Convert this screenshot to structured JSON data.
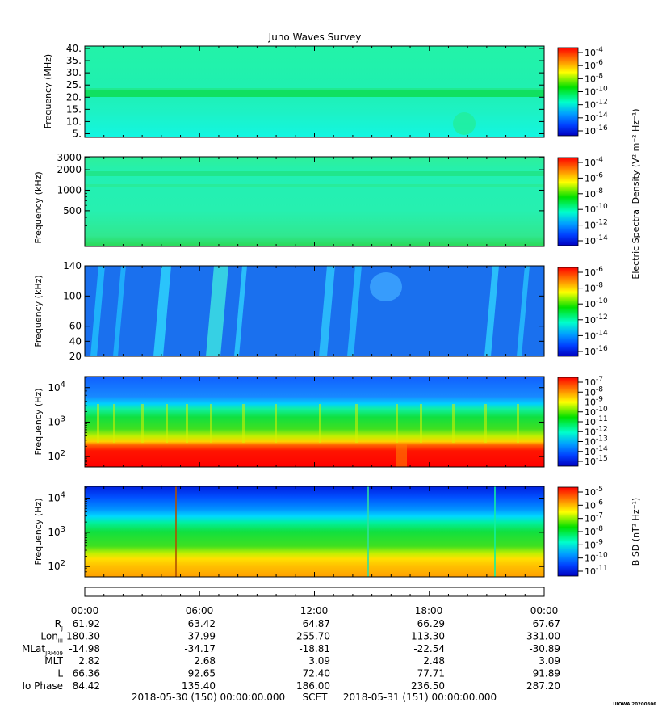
{
  "title": "Juno Waves Survey",
  "footer": {
    "start": "2018-05-30 (150) 00:00:00.000",
    "mid": "SCET",
    "end": "2018-05-31 (151) 00:00:00.000",
    "stamp": "UIOWA 20200306"
  },
  "cb_labels": {
    "electric": "Electric Spectral Density (V² m⁻² Hz⁻¹)",
    "magnetic": "B SD (nT² Hz⁻¹)"
  },
  "chart_data": [
    {
      "type": "heatmap",
      "ylabel": "Frequency (MHz)",
      "yscale": "linear",
      "ylim": [
        3.5,
        41
      ],
      "yticks": [
        {
          "v": 5,
          "label": "5."
        },
        {
          "v": 10,
          "label": "10."
        },
        {
          "v": 15,
          "label": "15."
        },
        {
          "v": 20,
          "label": "20."
        },
        {
          "v": 25,
          "label": "25."
        },
        {
          "v": 30,
          "label": "30."
        },
        {
          "v": 35,
          "label": "35."
        },
        {
          "v": 40,
          "label": "40."
        }
      ],
      "colorbar": {
        "ticks": [
          {
            "base": "10",
            "exp": "-4"
          },
          {
            "base": "10",
            "exp": "-6"
          },
          {
            "base": "10",
            "exp": "-8"
          },
          {
            "base": "10",
            "exp": "-10"
          },
          {
            "base": "10",
            "exp": "-12"
          },
          {
            "base": "10",
            "exp": "-14"
          },
          {
            "base": "10",
            "exp": "-16"
          }
        ]
      }
    },
    {
      "type": "heatmap",
      "ylabel": "Frequency (kHz)",
      "yscale": "log",
      "ylim": [
        150,
        3100
      ],
      "yticks": [
        {
          "v": 500,
          "label": "500"
        },
        {
          "v": 1000,
          "label": "1000"
        },
        {
          "v": 2000,
          "label": "2000"
        },
        {
          "v": 3000,
          "label": "3000"
        }
      ],
      "colorbar": {
        "ticks": [
          {
            "base": "10",
            "exp": "-4"
          },
          {
            "base": "10",
            "exp": "-6"
          },
          {
            "base": "10",
            "exp": "-8"
          },
          {
            "base": "10",
            "exp": "-10"
          },
          {
            "base": "10",
            "exp": "-12"
          },
          {
            "base": "10",
            "exp": "-14"
          }
        ]
      }
    },
    {
      "type": "heatmap",
      "ylabel": "Frequency (kHz)",
      "yscale": "linear",
      "ylim": [
        20,
        140
      ],
      "yticks": [
        {
          "v": 20,
          "label": "20"
        },
        {
          "v": 40,
          "label": "40"
        },
        {
          "v": 60,
          "label": "60"
        },
        {
          "v": 100,
          "label": "100"
        },
        {
          "v": 140,
          "label": "140"
        }
      ],
      "colorbar": {
        "ticks": [
          {
            "base": "10",
            "exp": "-6"
          },
          {
            "base": "10",
            "exp": "-8"
          },
          {
            "base": "10",
            "exp": "-10"
          },
          {
            "base": "10",
            "exp": "-12"
          },
          {
            "base": "10",
            "exp": "-14"
          },
          {
            "base": "10",
            "exp": "-16"
          }
        ]
      }
    },
    {
      "type": "heatmap",
      "ylabel": "Frequency (Hz)",
      "yscale": "log",
      "ylim": [
        50,
        21000
      ],
      "yticks": [
        {
          "v": 100,
          "base": "10",
          "exp": "2"
        },
        {
          "v": 1000,
          "base": "10",
          "exp": "3"
        },
        {
          "v": 10000,
          "base": "10",
          "exp": "4"
        }
      ],
      "colorbar": {
        "ticks": [
          {
            "base": "10",
            "exp": "-7"
          },
          {
            "base": "10",
            "exp": "-8"
          },
          {
            "base": "10",
            "exp": "-9"
          },
          {
            "base": "10",
            "exp": "-10"
          },
          {
            "base": "10",
            "exp": "-11"
          },
          {
            "base": "10",
            "exp": "-12"
          },
          {
            "base": "10",
            "exp": "-13"
          },
          {
            "base": "10",
            "exp": "-14"
          },
          {
            "base": "10",
            "exp": "-15"
          }
        ]
      }
    },
    {
      "type": "heatmap",
      "ylabel": "Frequency (Hz)",
      "yscale": "log",
      "ylim": [
        50,
        22000
      ],
      "yticks": [
        {
          "v": 100,
          "base": "10",
          "exp": "2"
        },
        {
          "v": 1000,
          "base": "10",
          "exp": "3"
        },
        {
          "v": 10000,
          "base": "10",
          "exp": "4"
        }
      ],
      "colorbar": {
        "ticks": [
          {
            "base": "10",
            "exp": "-5"
          },
          {
            "base": "10",
            "exp": "-6"
          },
          {
            "base": "10",
            "exp": "-7"
          },
          {
            "base": "10",
            "exp": "-8"
          },
          {
            "base": "10",
            "exp": "-9"
          },
          {
            "base": "10",
            "exp": "-10"
          },
          {
            "base": "10",
            "exp": "-11"
          }
        ]
      }
    }
  ],
  "ephemeris": {
    "times": [
      "00:00",
      "06:00",
      "12:00",
      "18:00",
      "00:00"
    ],
    "rows": [
      {
        "label": "R",
        "sub": "J",
        "values": [
          "61.92",
          "63.42",
          "64.87",
          "66.29",
          "67.67"
        ]
      },
      {
        "label": "Lon",
        "sub": "III",
        "values": [
          "180.30",
          "37.99",
          "255.70",
          "113.30",
          "331.00"
        ]
      },
      {
        "label": "MLat",
        "sub": "JRM09",
        "values": [
          "-14.98",
          "-34.17",
          "-18.81",
          "-22.54",
          "-30.89"
        ]
      },
      {
        "label": "MLT",
        "sub": "",
        "values": [
          "2.82",
          "2.68",
          "3.09",
          "2.48",
          "3.09"
        ]
      },
      {
        "label": "L",
        "sub": "",
        "values": [
          "66.36",
          "92.65",
          "72.40",
          "77.71",
          "91.89"
        ]
      },
      {
        "label": "Io Phase",
        "sub": "",
        "values": [
          "84.42",
          "135.40",
          "186.00",
          "236.50",
          "287.20"
        ]
      }
    ]
  }
}
